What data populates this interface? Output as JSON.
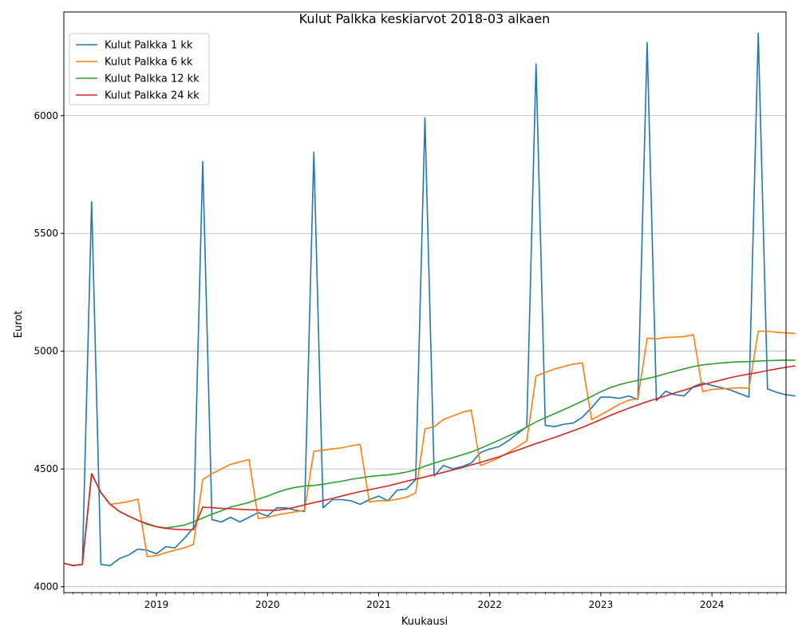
{
  "chart_data": {
    "type": "line",
    "title": "Kulut Palkka keskiarvot 2018-03 alkaen",
    "xlabel": "Kuukausi",
    "ylabel": "Eurot",
    "x_start": "2018-03",
    "x_end": "2024-09",
    "x_ticks": [
      "2019",
      "2020",
      "2021",
      "2022",
      "2023",
      "2024"
    ],
    "ylim": [
      3975,
      6440
    ],
    "y_ticks": [
      4000,
      4500,
      5000,
      5500,
      6000
    ],
    "grid": "horizontal",
    "legend_position": "top-left",
    "colors": {
      "s1": "#1f77b4",
      "s6": "#ff7f0e",
      "s12": "#2ca02c",
      "s24": "#d62728"
    },
    "series": [
      {
        "name": "Kulut Palkka 1 kk",
        "color": "#1f77b4",
        "values": [
          4100,
          4090,
          4095,
          5635,
          4095,
          4090,
          4120,
          4135,
          4160,
          4155,
          4140,
          4170,
          4165,
          4205,
          4250,
          5805,
          4285,
          4275,
          4295,
          4275,
          4295,
          4315,
          4300,
          4335,
          4335,
          4325,
          4320,
          5845,
          4335,
          4370,
          4370,
          4365,
          4350,
          4370,
          4385,
          4365,
          4410,
          4415,
          4455,
          5990,
          4470,
          4515,
          4500,
          4510,
          4525,
          4570,
          4585,
          4595,
          4620,
          4650,
          4680,
          6220,
          4685,
          4680,
          4690,
          4695,
          4720,
          4760,
          4805,
          4805,
          4800,
          4810,
          4795,
          6310,
          4790,
          4830,
          4815,
          4810,
          4850,
          4865,
          4855,
          4845,
          4835,
          4820,
          4805,
          6350,
          4840,
          4825,
          4815,
          4810
        ]
      },
      {
        "name": "Kulut Palkka 6 kk",
        "color": "#ff7f0e",
        "values": [
          4100,
          4090,
          4095,
          4480,
          4400,
          4350,
          4355,
          4362,
          4372,
          4128,
          4132,
          4145,
          4155,
          4165,
          4180,
          4455,
          4480,
          4500,
          4520,
          4530,
          4540,
          4290,
          4295,
          4305,
          4312,
          4318,
          4325,
          4575,
          4580,
          4585,
          4590,
          4598,
          4605,
          4360,
          4365,
          4365,
          4372,
          4380,
          4398,
          4670,
          4680,
          4710,
          4725,
          4740,
          4750,
          4515,
          4530,
          4548,
          4570,
          4595,
          4620,
          4895,
          4910,
          4925,
          4935,
          4945,
          4950,
          4710,
          4730,
          4752,
          4775,
          4792,
          4798,
          5055,
          5052,
          5058,
          5060,
          5062,
          5070,
          4828,
          4838,
          4840,
          4842,
          4845,
          4842,
          5085,
          5085,
          5080,
          5078,
          5075
        ]
      },
      {
        "name": "Kulut Palkka 12 kk",
        "color": "#2ca02c",
        "values": [
          4100,
          4090,
          4095,
          4480,
          4400,
          4350,
          4320,
          4300,
          4282,
          4265,
          4255,
          4250,
          4255,
          4262,
          4275,
          4292,
          4308,
          4322,
          4338,
          4348,
          4358,
          4372,
          4385,
          4400,
          4413,
          4422,
          4428,
          4430,
          4435,
          4442,
          4448,
          4456,
          4462,
          4468,
          4472,
          4475,
          4480,
          4487,
          4497,
          4512,
          4525,
          4537,
          4548,
          4560,
          4572,
          4588,
          4605,
          4622,
          4640,
          4658,
          4678,
          4700,
          4718,
          4735,
          4752,
          4770,
          4788,
          4808,
          4828,
          4845,
          4858,
          4868,
          4876,
          4884,
          4893,
          4905,
          4915,
          4925,
          4935,
          4942,
          4946,
          4950,
          4953,
          4955,
          4956,
          4958,
          4960,
          4961,
          4962,
          4962
        ]
      },
      {
        "name": "Kulut Palkka 24 kk",
        "color": "#d62728",
        "values": [
          4100,
          4090,
          4095,
          4480,
          4400,
          4350,
          4320,
          4300,
          4282,
          4268,
          4255,
          4248,
          4244,
          4242,
          4243,
          4338,
          4336,
          4333,
          4331,
          4329,
          4327,
          4326,
          4325,
          4325,
          4330,
          4338,
          4348,
          4357,
          4366,
          4375,
          4385,
          4395,
          4404,
          4412,
          4420,
          4428,
          4438,
          4448,
          4457,
          4466,
          4476,
          4486,
          4496,
          4506,
          4517,
          4528,
          4540,
          4552,
          4566,
          4580,
          4594,
          4608,
          4621,
          4634,
          4648,
          4662,
          4677,
          4693,
          4710,
          4727,
          4743,
          4758,
          4772,
          4786,
          4798,
          4810,
          4823,
          4835,
          4847,
          4858,
          4868,
          4878,
          4888,
          4896,
          4903,
          4910,
          4918,
          4925,
          4932,
          4938
        ]
      }
    ]
  }
}
